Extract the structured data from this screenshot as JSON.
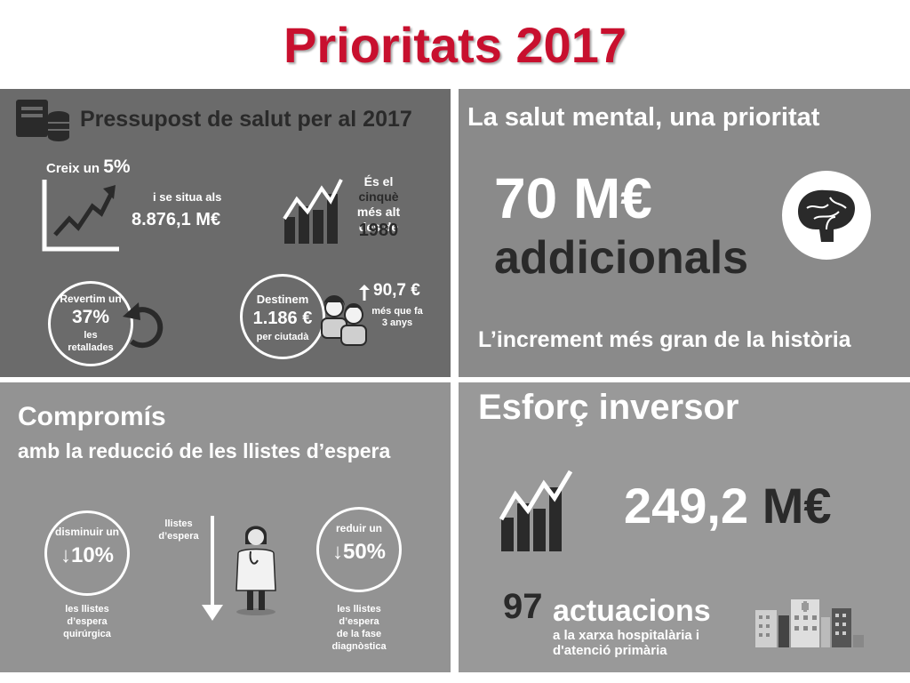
{
  "page_title": "Prioritats 2017",
  "budget": {
    "heading": "Pressupost de salut per al 2017",
    "grows_prefix": "Creix un",
    "grows_value": "5%",
    "situates": "i se situa als",
    "total": "8.876,1 M€",
    "fifth_line1_a": "És el",
    "fifth_line1_b": "cinquè",
    "fifth_line2": "més alt",
    "fifth_line3": "des de",
    "fifth_year": "1980",
    "revert_line1": "Revertim un",
    "revert_value": "37%",
    "revert_line2": "les",
    "revert_line3": "retallades",
    "dest_line1": "Destinem",
    "dest_value": "1.186 €",
    "dest_line2": "per ciutadà",
    "increase_value": "90,7 €",
    "increase_line1": "més que fa",
    "increase_line2": "3 anys"
  },
  "mental": {
    "heading": "La salut mental, una prioritat",
    "amount": "70 M€",
    "additional": "addicionals",
    "footer": "L’increment més gran de la història"
  },
  "waiting": {
    "heading": "Compromís",
    "subheading": "amb la reducció de les llistes d’espera",
    "left_label": "disminuir un",
    "left_value": "10%",
    "left_caption1": "les llistes",
    "left_caption2": "d’espera",
    "left_caption3": "quirúrgica",
    "middle_line1": "llistes",
    "middle_line2": "d’espera",
    "right_label": "reduir un",
    "right_value": "50%",
    "right_caption1": "les llistes",
    "right_caption2": "d’espera",
    "right_caption3": "de la fase",
    "right_caption4": "diagnòstica"
  },
  "investment": {
    "heading": "Esforç inversor",
    "amount_number": "249,2",
    "amount_unit": "M€",
    "actions_count": "97",
    "actions_label": "actuacions",
    "actions_line1": "a la xarxa hospitalària i",
    "actions_line2": "d'atenció primària"
  },
  "icons": {
    "budget": "money-stack-icon",
    "growth": "growth-chart-icon",
    "bars": "bar-chart-icon",
    "undo": "undo-arrow-icon",
    "people": "people-icon",
    "up_arrow": "up-arrow-icon",
    "brain": "brain-icon",
    "down_arrow": "down-arrow-icon",
    "doctor": "doctor-icon",
    "buildings": "hospital-buildings-icon"
  },
  "colors": {
    "title": "#c8102e"
  }
}
